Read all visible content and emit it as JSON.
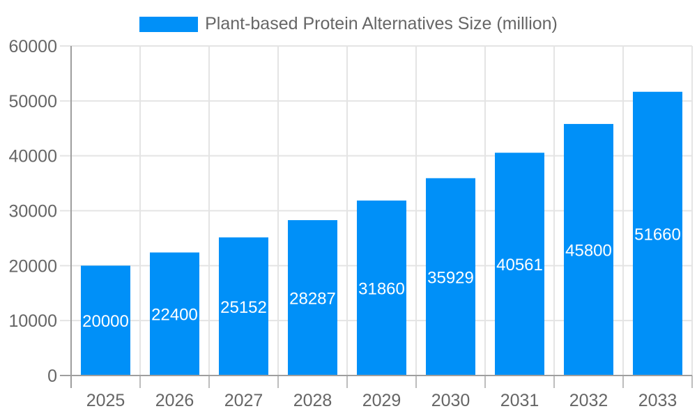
{
  "legend": {
    "label": "Plant-based Protein Alternatives Size (million)"
  },
  "chart_data": {
    "type": "bar",
    "title": "Plant-based Protein Alternatives Size (million)",
    "categories": [
      "2025",
      "2026",
      "2027",
      "2028",
      "2029",
      "2030",
      "2031",
      "2032",
      "2033"
    ],
    "values": [
      20000,
      22400,
      25152,
      28287,
      31860,
      35929,
      40561,
      45800,
      51660
    ],
    "xlabel": "",
    "ylabel": "",
    "ylim": [
      0,
      60000
    ],
    "yticks": [
      0,
      10000,
      20000,
      30000,
      40000,
      50000,
      60000
    ],
    "grid": true,
    "legend_position": "top",
    "bar_color": "#0090F8",
    "value_label_color": "#FFFFFF",
    "axis_text_color": "#666666",
    "gridline_color": "#E4E4E4",
    "tick_color": "#BDBDBD",
    "axis_line_color": "#9E9E9E"
  }
}
